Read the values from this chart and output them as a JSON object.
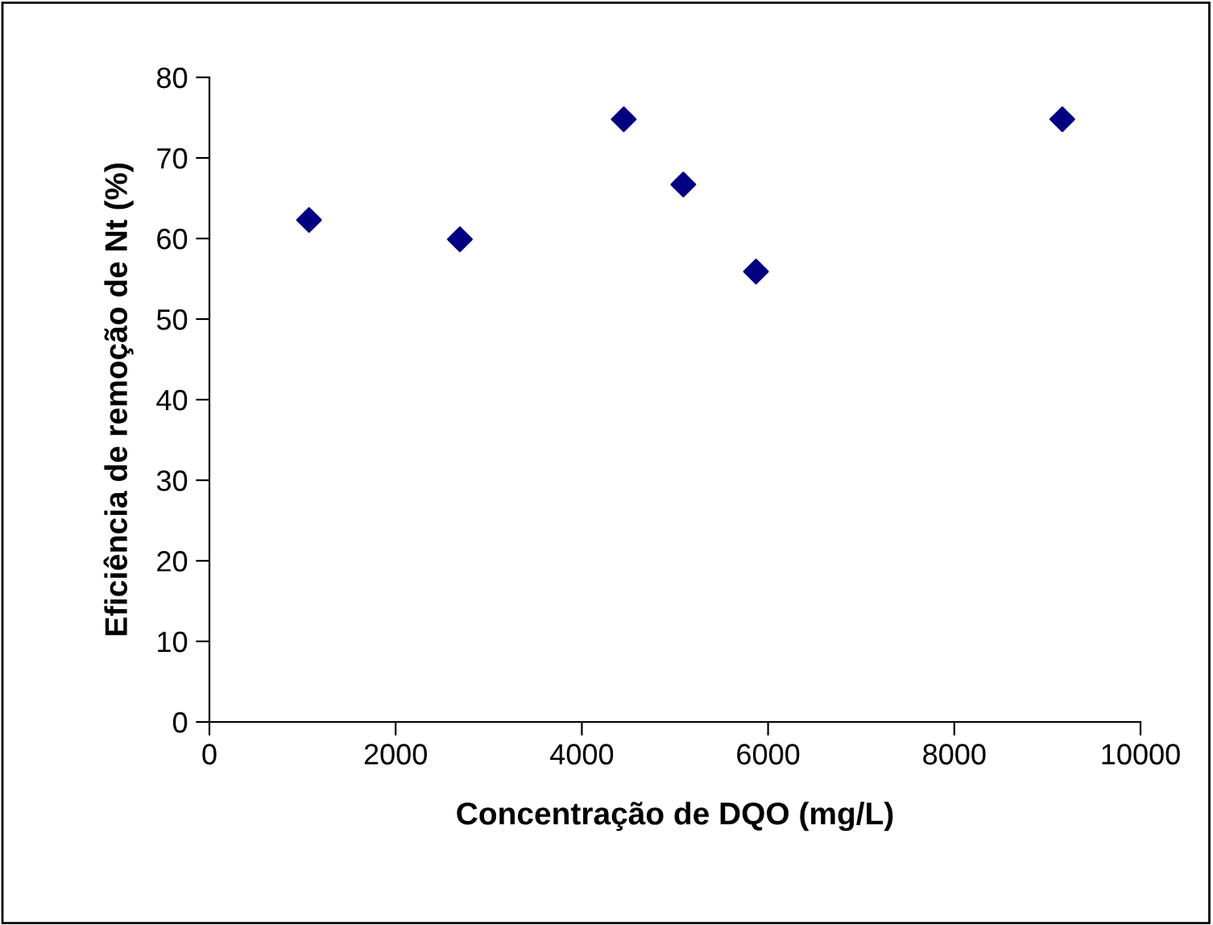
{
  "chart_data": {
    "type": "scatter",
    "xlabel": "Concentração de DQO (mg/L)",
    "ylabel": "Eficiência de remoção de Nt (%)",
    "x": [
      1070,
      2690,
      4450,
      5090,
      5870,
      9160
    ],
    "values": [
      62.3,
      59.9,
      74.8,
      66.7,
      55.9,
      74.8
    ],
    "color": "#000080",
    "marker": "diamond",
    "grid": false,
    "legend": false,
    "xlim": [
      0,
      10000
    ],
    "xticks": [
      0,
      2000,
      4000,
      6000,
      8000,
      10000
    ],
    "ylim": [
      0,
      80
    ],
    "yticks": [
      0,
      10,
      20,
      30,
      40,
      50,
      60,
      70,
      80
    ]
  }
}
